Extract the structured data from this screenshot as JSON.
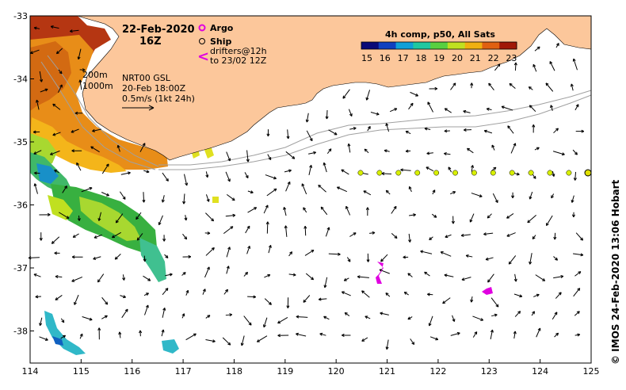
{
  "header": {
    "date": "22-Feb-2020",
    "hour": "16Z"
  },
  "legend": {
    "argo_label": "Argo",
    "ship_label": "Ship",
    "drifter_label_1": "drifters@12h",
    "drifter_label_2": "to 23/02 12Z",
    "argo_color": "#e000e0",
    "drifter_color": "#e000e0"
  },
  "colorbar": {
    "title": "4h comp, p50, All Sats",
    "ticks": [
      "15",
      "16",
      "17",
      "18",
      "19",
      "20",
      "21",
      "22",
      "23"
    ],
    "colors": [
      "#0a0a78",
      "#1040c0",
      "#10a0d8",
      "#20c8a0",
      "#58d040",
      "#c0e020",
      "#f0b010",
      "#e06010",
      "#a01808"
    ]
  },
  "annotations": {
    "iso_200": "200m",
    "iso_1000": "1000m",
    "product": "NRT00 GSL",
    "product_date": "20-Feb 18:00Z",
    "scale_label": "0.5m/s (1kt 24h)"
  },
  "axes": {
    "x_ticks": [
      "114",
      "115",
      "116",
      "117",
      "118",
      "119",
      "120",
      "121",
      "122",
      "123",
      "124",
      "125"
    ],
    "y_ticks": [
      "-33",
      "-34",
      "-35",
      "-36",
      "-37",
      "-38"
    ]
  },
  "credit": "© IMOS 24-Feb-2020 13:06 Hobart",
  "colors": {
    "land": "#fcc79b",
    "ship_track": "#d8f000",
    "bathymetry": "#a0a0a0"
  }
}
